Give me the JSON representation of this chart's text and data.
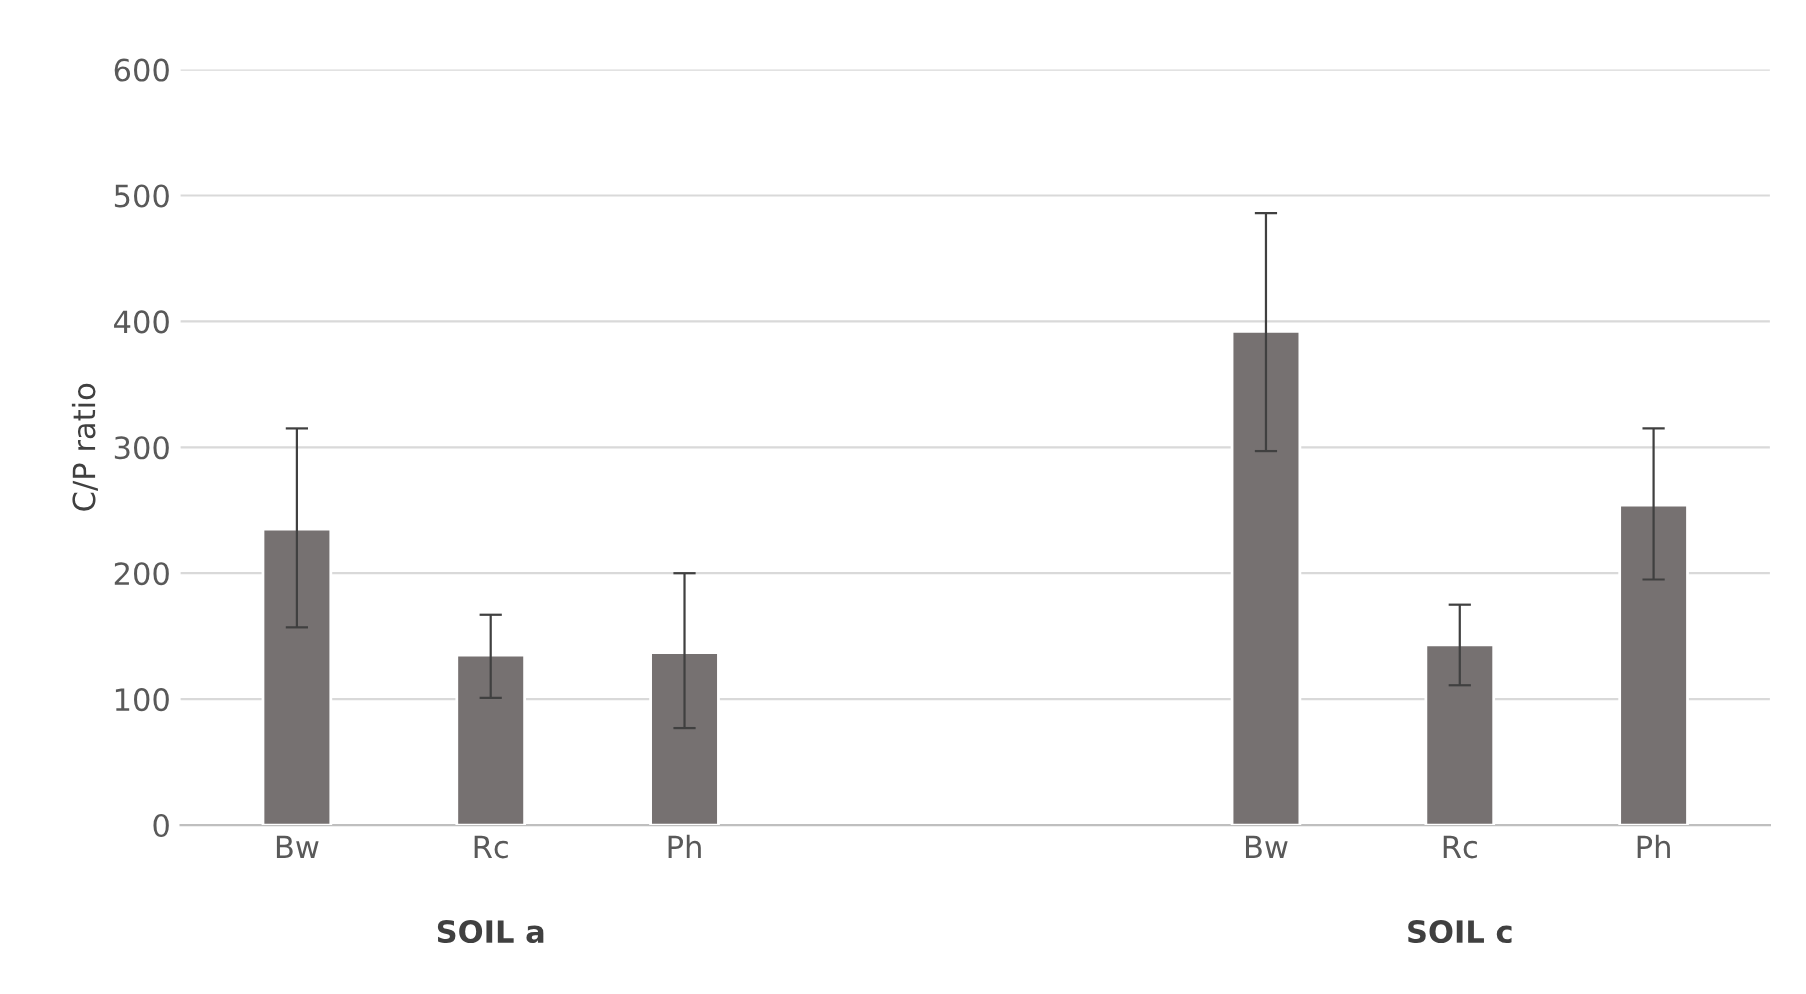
{
  "chart_data": {
    "type": "bar",
    "ylabel": "C/P ratio",
    "categories": [
      "Bw",
      "Rc",
      "Ph",
      null,
      null,
      "Bw",
      "Rc",
      "Ph"
    ],
    "values": [
      235,
      135,
      137,
      null,
      null,
      392,
      143,
      254
    ],
    "errors": [
      [
        157,
        315
      ],
      [
        101,
        167
      ],
      [
        77,
        200
      ],
      null,
      null,
      [
        297,
        486
      ],
      [
        111,
        175
      ],
      [
        195,
        315
      ]
    ],
    "color": "#767171",
    "ylim": [
      0,
      600
    ],
    "yticks": [
      0,
      100,
      200,
      300,
      400,
      500,
      600
    ],
    "grid": "y",
    "annotations": [
      "SOIL a",
      "SOIL c"
    ]
  }
}
